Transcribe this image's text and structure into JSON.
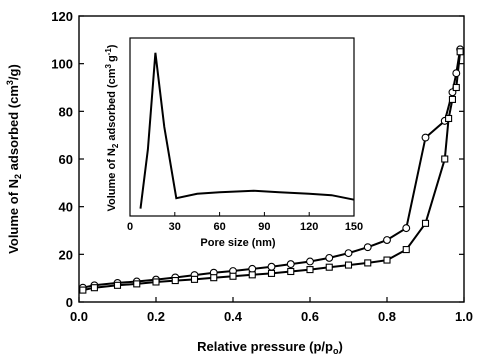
{
  "chart_data": [
    {
      "type": "line",
      "title": "",
      "xlabel": "Relative pressure (p/p",
      "xlabel_sub": "o",
      "xlabel_close": ")",
      "ylabel_parts": [
        "Volume of N",
        "2",
        " adsorbed (cm",
        "3",
        "/g)"
      ],
      "xlim": [
        0.0,
        1.0
      ],
      "ylim": [
        0,
        120
      ],
      "xticks": [
        "0.0",
        "0.2",
        "0.4",
        "0.6",
        "0.8",
        "1.0"
      ],
      "yticks": [
        "0",
        "20",
        "40",
        "60",
        "80",
        "100",
        "120"
      ],
      "grid": false,
      "legend": "none",
      "series": [
        {
          "marker": "circle",
          "x": [
            0.01,
            0.04,
            0.1,
            0.15,
            0.2,
            0.25,
            0.3,
            0.35,
            0.4,
            0.45,
            0.5,
            0.55,
            0.6,
            0.65,
            0.7,
            0.75,
            0.8,
            0.85,
            0.9,
            0.95,
            0.97,
            0.98,
            0.99
          ],
          "y": [
            6.0,
            7.0,
            8.0,
            8.6,
            9.4,
            10.3,
            11.3,
            12.3,
            13.0,
            13.9,
            14.8,
            15.9,
            17.0,
            18.5,
            20.5,
            23.0,
            26.0,
            31.0,
            69.0,
            76.0,
            88.0,
            96.0,
            106.0
          ]
        },
        {
          "marker": "square",
          "x": [
            0.01,
            0.04,
            0.1,
            0.15,
            0.2,
            0.25,
            0.3,
            0.35,
            0.4,
            0.45,
            0.5,
            0.55,
            0.6,
            0.65,
            0.7,
            0.75,
            0.8,
            0.85,
            0.9,
            0.95,
            0.96,
            0.97,
            0.98,
            0.99
          ],
          "y": [
            5.0,
            6.0,
            7.0,
            7.6,
            8.4,
            9.0,
            9.5,
            10.2,
            10.8,
            11.4,
            12.0,
            12.8,
            13.6,
            14.6,
            15.5,
            16.4,
            17.6,
            22.0,
            33.0,
            60.0,
            77.0,
            85.0,
            90.0,
            105.0
          ]
        }
      ]
    },
    {
      "type": "line",
      "title": "",
      "xlabel": "Pore size (nm)",
      "ylabel_parts": [
        "Volume of N",
        "2",
        " adsorbed (cm",
        "3",
        "g",
        "-1",
        ")"
      ],
      "xlim": [
        0,
        150
      ],
      "xticks": [
        "0",
        "30",
        "60",
        "90",
        "120",
        "150"
      ],
      "yticks_shown": false,
      "grid": false,
      "series": [
        {
          "x": [
            7,
            12,
            17,
            23,
            31,
            45,
            60,
            83,
            100,
            120,
            135,
            150
          ],
          "y": [
            0.5,
            4.5,
            11.0,
            6.0,
            1.2,
            1.5,
            1.6,
            1.7,
            1.6,
            1.5,
            1.4,
            1.1
          ]
        }
      ],
      "ylim": [
        0,
        12
      ]
    }
  ]
}
